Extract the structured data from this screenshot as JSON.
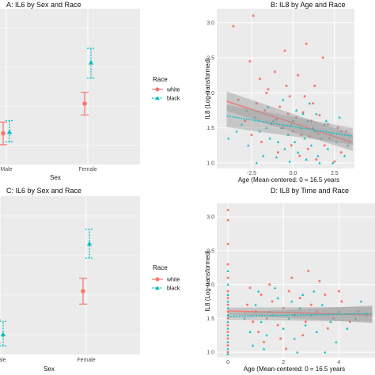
{
  "colors": {
    "white": "#F8766D",
    "black": "#00BFC4",
    "panel_bg": "#EBEBEB",
    "grid": "#FFFFFF",
    "ribbon": "#999999"
  },
  "legend": {
    "title": "Race",
    "items": [
      "white",
      "black"
    ]
  },
  "chart_data": [
    {
      "id": "A",
      "type": "errorbar",
      "title": "A: IL6 by Sex and Race",
      "xlabel": "Sex",
      "ylabel": "",
      "categories": [
        "Male",
        "Female"
      ],
      "ylim": [
        1.1,
        2.2
      ],
      "series": [
        {
          "name": "white",
          "points": [
            {
              "x": "Male",
              "mean": 1.32,
              "lo": 1.24,
              "hi": 1.4
            },
            {
              "x": "Female",
              "mean": 1.53,
              "lo": 1.45,
              "hi": 1.61
            }
          ]
        },
        {
          "name": "black",
          "points": [
            {
              "x": "Male",
              "mean": 1.33,
              "lo": 1.26,
              "hi": 1.41
            },
            {
              "x": "Female",
              "mean": 1.82,
              "lo": 1.71,
              "hi": 1.92
            }
          ]
        }
      ]
    },
    {
      "id": "B",
      "type": "scatter",
      "title": "B: IL8 by Age and Race",
      "xlabel": "Age (Mean-centered: 0 = 16.5 years",
      "ylabel": "IL8 (Log-transformed)",
      "xlim": [
        -4.6,
        3.7
      ],
      "ylim": [
        0.92,
        3.2
      ],
      "xticks": [
        "-2.5",
        "0.0",
        "2.5"
      ],
      "xtick_values": [
        -2.5,
        0.0,
        2.5
      ],
      "yticks": [
        "1.0",
        "1.5",
        "2.0",
        "2.5",
        "3.0"
      ],
      "ytick_values": [
        1.0,
        1.5,
        2.0,
        2.5,
        3.0
      ],
      "fits": [
        {
          "name": "white",
          "x": [
            -4.0,
            3.6
          ],
          "y": [
            1.88,
            1.29
          ],
          "ci_halfwidth": [
            0.14,
            0.12
          ]
        },
        {
          "name": "black",
          "x": [
            -4.0,
            3.6
          ],
          "y": [
            1.67,
            1.38
          ],
          "ci_halfwidth": [
            0.16,
            0.12
          ]
        }
      ],
      "series": [
        {
          "name": "white",
          "points": [
            [
              -3.6,
              2.95
            ],
            [
              -2.4,
              3.1
            ],
            [
              -2.6,
              2.45
            ],
            [
              -2.0,
              2.2
            ],
            [
              -1.5,
              2.05
            ],
            [
              -1.1,
              2.3
            ],
            [
              -0.5,
              2.6
            ],
            [
              -0.2,
              1.95
            ],
            [
              0.3,
              2.25
            ],
            [
              0.8,
              2.7
            ],
            [
              1.3,
              2.1
            ],
            [
              1.8,
              2.5
            ],
            [
              -3.3,
              1.9
            ],
            [
              -2.2,
              1.85
            ],
            [
              -1.7,
              1.75
            ],
            [
              -0.8,
              1.8
            ],
            [
              -0.3,
              1.7
            ],
            [
              0.2,
              1.65
            ],
            [
              0.6,
              1.72
            ],
            [
              1.1,
              1.6
            ],
            [
              1.6,
              1.68
            ],
            [
              2.1,
              1.55
            ],
            [
              2.7,
              1.5
            ],
            [
              3.2,
              1.45
            ],
            [
              -2.9,
              1.6
            ],
            [
              -1.3,
              1.55
            ],
            [
              -0.6,
              1.5
            ],
            [
              0.0,
              1.45
            ],
            [
              0.5,
              1.4
            ],
            [
              1.0,
              1.38
            ],
            [
              1.5,
              1.42
            ],
            [
              2.2,
              1.35
            ],
            [
              -1.9,
              1.3
            ],
            [
              -0.1,
              1.25
            ],
            [
              0.9,
              1.2
            ],
            [
              1.9,
              1.25
            ],
            [
              2.9,
              1.15
            ],
            [
              -0.9,
              1.15
            ],
            [
              0.4,
              1.1
            ],
            [
              1.4,
              1.05
            ],
            [
              2.5,
              1.02
            ],
            [
              -1.6,
              2.0
            ],
            [
              -0.4,
              2.1
            ],
            [
              0.7,
              1.95
            ],
            [
              1.2,
              1.85
            ],
            [
              3.4,
              1.3
            ],
            [
              -2.5,
              1.4
            ],
            [
              -1.0,
              1.62
            ]
          ]
        },
        {
          "name": "black",
          "points": [
            [
              -3.9,
              1.35
            ],
            [
              -3.1,
              1.55
            ],
            [
              -2.7,
              1.25
            ],
            [
              -2.3,
              1.65
            ],
            [
              -2.0,
              1.45
            ],
            [
              -1.8,
              1.1
            ],
            [
              -1.4,
              1.35
            ],
            [
              -1.2,
              1.6
            ],
            [
              -0.9,
              1.3
            ],
            [
              -0.7,
              1.5
            ],
            [
              -0.5,
              1.2
            ],
            [
              -0.3,
              1.4
            ],
            [
              -0.1,
              1.55
            ],
            [
              0.1,
              1.3
            ],
            [
              0.3,
              1.15
            ],
            [
              0.5,
              1.5
            ],
            [
              0.7,
              1.35
            ],
            [
              0.9,
              1.6
            ],
            [
              1.1,
              1.25
            ],
            [
              1.3,
              1.45
            ],
            [
              1.5,
              1.1
            ],
            [
              1.7,
              1.35
            ],
            [
              1.9,
              1.55
            ],
            [
              2.1,
              1.2
            ],
            [
              2.3,
              1.4
            ],
            [
              2.6,
              1.3
            ],
            [
              2.9,
              1.45
            ],
            [
              3.1,
              1.1
            ],
            [
              3.3,
              1.25
            ],
            [
              -1.5,
              1.8
            ],
            [
              -0.6,
              1.9
            ],
            [
              0.2,
              1.75
            ],
            [
              0.8,
              1.05
            ],
            [
              1.6,
              1.0
            ],
            [
              -2.2,
              1.0
            ],
            [
              -0.2,
              1.02
            ],
            [
              0.6,
              1.7
            ],
            [
              1.0,
              1.85
            ],
            [
              2.0,
              1.6
            ],
            [
              2.4,
              1.0
            ],
            [
              -1.0,
              1.08
            ],
            [
              0.0,
              1.6
            ],
            [
              1.2,
              1.5
            ],
            [
              -2.8,
              1.75
            ],
            [
              -3.4,
              1.45
            ],
            [
              2.8,
              1.65
            ],
            [
              1.4,
              1.7
            ],
            [
              -1.6,
              1.5
            ]
          ]
        }
      ]
    },
    {
      "id": "C",
      "type": "errorbar",
      "title": "C: IL6 by Sex and Race",
      "xlabel": "Sex",
      "ylabel": "",
      "categories": [
        "Male",
        "Female"
      ],
      "ylim": [
        1.1,
        2.2
      ],
      "series": [
        {
          "name": "white",
          "points": [
            {
              "x": "Male",
              "mean": 1.26,
              "lo": 1.18,
              "hi": 1.34
            },
            {
              "x": "Female",
              "mean": 1.54,
              "lo": 1.45,
              "hi": 1.63
            }
          ]
        },
        {
          "name": "black",
          "points": [
            {
              "x": "Male",
              "mean": 1.24,
              "lo": 1.16,
              "hi": 1.33
            },
            {
              "x": "Female",
              "mean": 1.87,
              "lo": 1.77,
              "hi": 1.97
            }
          ]
        }
      ]
    },
    {
      "id": "D",
      "type": "scatter",
      "title": "D: IL8 by Time and Race",
      "xlabel": "Age (Mean-centered: 0 = 16.5 years",
      "ylabel": "IL8 (Log-transformed)",
      "xlim": [
        -0.4,
        5.3
      ],
      "ylim": [
        0.92,
        3.2
      ],
      "xticks": [
        "0",
        "2",
        "4"
      ],
      "xtick_values": [
        0,
        2,
        4
      ],
      "yticks": [
        "1.0",
        "1.5",
        "2.0",
        "2.5",
        "3.0"
      ],
      "ytick_values": [
        1.0,
        1.5,
        2.0,
        2.5,
        3.0
      ],
      "fits": [
        {
          "name": "white",
          "x": [
            0,
            5.2
          ],
          "y": [
            1.61,
            1.55
          ],
          "ci_halfwidth": [
            0.05,
            0.12
          ]
        },
        {
          "name": "black",
          "x": [
            0,
            5.2
          ],
          "y": [
            1.53,
            1.57
          ],
          "ci_halfwidth": [
            0.05,
            0.12
          ]
        }
      ],
      "series": [
        {
          "name": "white",
          "points": [
            [
              0,
              3.1
            ],
            [
              0,
              2.95
            ],
            [
              0,
              2.6
            ],
            [
              0,
              2.3
            ],
            [
              0,
              2.1
            ],
            [
              0,
              1.9
            ],
            [
              0,
              1.8
            ],
            [
              0,
              1.7
            ],
            [
              0,
              1.6
            ],
            [
              0,
              1.5
            ],
            [
              0,
              1.4
            ],
            [
              0,
              1.3
            ],
            [
              0,
              1.2
            ],
            [
              0,
              1.1
            ],
            [
              0,
              1.0
            ],
            [
              0.7,
              1.7
            ],
            [
              1.0,
              1.6
            ],
            [
              1.2,
              1.85
            ],
            [
              1.4,
              1.5
            ],
            [
              1.6,
              1.75
            ],
            [
              1.8,
              1.4
            ],
            [
              2.0,
              1.65
            ],
            [
              2.2,
              1.9
            ],
            [
              2.4,
              1.55
            ],
            [
              2.6,
              1.8
            ],
            [
              2.8,
              1.45
            ],
            [
              3.0,
              1.7
            ],
            [
              3.2,
              1.6
            ],
            [
              3.5,
              1.85
            ],
            [
              3.8,
              1.5
            ],
            [
              4.1,
              1.75
            ],
            [
              4.4,
              1.45
            ],
            [
              2.3,
              2.1
            ],
            [
              1.5,
              2.0
            ],
            [
              3.3,
              2.05
            ],
            [
              1.1,
              1.3
            ],
            [
              2.7,
              1.25
            ],
            [
              4.7,
              1.6
            ],
            [
              0.9,
              1.45
            ],
            [
              1.9,
              1.2
            ],
            [
              3.6,
              1.35
            ],
            [
              2.9,
              2.2
            ],
            [
              1.3,
              1.15
            ],
            [
              2.1,
              1.05
            ],
            [
              4.0,
              1.9
            ],
            [
              0.8,
              1.95
            ]
          ]
        },
        {
          "name": "black",
          "points": [
            [
              0,
              2.2
            ],
            [
              0,
              2.0
            ],
            [
              0,
              1.85
            ],
            [
              0,
              1.75
            ],
            [
              0,
              1.65
            ],
            [
              0,
              1.55
            ],
            [
              0,
              1.45
            ],
            [
              0,
              1.35
            ],
            [
              0,
              1.25
            ],
            [
              0,
              1.15
            ],
            [
              0,
              1.05
            ],
            [
              0,
              0.97
            ],
            [
              0.6,
              1.5
            ],
            [
              0.8,
              1.3
            ],
            [
              1.0,
              1.7
            ],
            [
              1.2,
              1.45
            ],
            [
              1.4,
              1.25
            ],
            [
              1.6,
              1.55
            ],
            [
              1.8,
              1.8
            ],
            [
              2.0,
              1.35
            ],
            [
              2.2,
              1.5
            ],
            [
              2.4,
              1.2
            ],
            [
              2.6,
              1.65
            ],
            [
              2.8,
              1.4
            ],
            [
              3.0,
              1.55
            ],
            [
              3.2,
              1.3
            ],
            [
              3.4,
              1.7
            ],
            [
              3.7,
              1.45
            ],
            [
              4.0,
              1.6
            ],
            [
              4.3,
              1.35
            ],
            [
              4.6,
              1.5
            ],
            [
              5.0,
              1.55
            ],
            [
              1.3,
              1.05
            ],
            [
              2.5,
              1.0
            ],
            [
              3.1,
              1.9
            ],
            [
              1.7,
              1.95
            ],
            [
              3.9,
              1.15
            ],
            [
              2.3,
              1.75
            ],
            [
              1.1,
              1.9
            ],
            [
              4.8,
              1.75
            ],
            [
              0.9,
              1.1
            ],
            [
              3.5,
              1.0
            ],
            [
              2.7,
              1.85
            ],
            [
              1.5,
              1.6
            ]
          ]
        }
      ]
    }
  ]
}
